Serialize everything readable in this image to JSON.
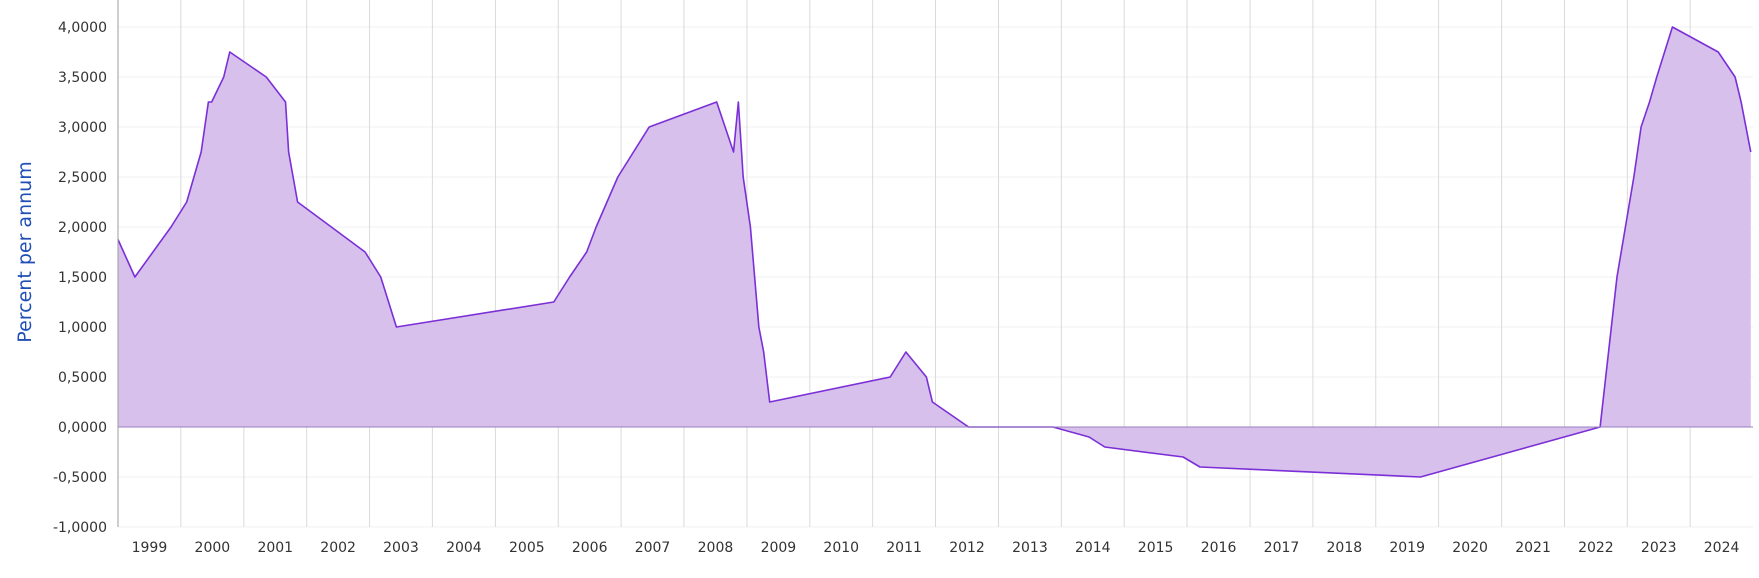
{
  "chart_data": {
    "type": "area",
    "ylabel": "Percent per annum",
    "xlabel": "",
    "title": "",
    "ylim": [
      -1.0,
      4.0
    ],
    "xlim": [
      "1999-01-01",
      "2024-12-31"
    ],
    "grid": {
      "vertical": true,
      "horizontal": true
    },
    "y_ticks": [
      "4,0000",
      "3,5000",
      "3,0000",
      "2,5000",
      "2,0000",
      "1,5000",
      "1,0000",
      "0,5000",
      "0,0000",
      "-0,5000",
      "-1,0000"
    ],
    "y_tick_values": [
      4.0,
      3.5,
      3.0,
      2.5,
      2.0,
      1.5,
      1.0,
      0.5,
      0.0,
      -0.5,
      -1.0
    ],
    "x_ticks": [
      "1999",
      "2000",
      "2001",
      "2002",
      "2003",
      "2004",
      "2005",
      "2006",
      "2007",
      "2008",
      "2009",
      "2010",
      "2011",
      "2012",
      "2013",
      "2014",
      "2015",
      "2016",
      "2017",
      "2018",
      "2019",
      "2020",
      "2021",
      "2022",
      "2023",
      "2024"
    ],
    "colors": {
      "line": "#7b2fd6",
      "fill": "#d7c1ec",
      "ylabel": "#1f4fb5"
    },
    "series": [
      {
        "x": [
          "1999-01-01",
          "1999-04-09",
          "1999-11-05",
          "2000-02-04",
          "2000-03-17",
          "2000-04-28",
          "2000-06-09",
          "2000-06-28",
          "2000-09-06",
          "2000-10-11",
          "2001-05-11",
          "2001-08-31",
          "2001-09-18",
          "2001-11-09",
          "2002-12-06",
          "2003-03-07",
          "2003-06-06",
          "2005-12-06",
          "2006-03-08",
          "2006-06-15",
          "2006-08-09",
          "2006-10-11",
          "2006-12-13",
          "2007-03-14",
          "2007-06-13",
          "2008-07-09",
          "2008-10-15",
          "2008-11-12",
          "2008-12-10",
          "2009-01-21",
          "2009-03-11",
          "2009-04-08",
          "2009-05-13",
          "2011-04-13",
          "2011-07-13",
          "2011-11-09",
          "2011-12-14",
          "2012-07-11",
          "2013-05-08",
          "2013-11-13",
          "2014-06-11",
          "2014-09-10",
          "2015-12-09",
          "2016-03-16",
          "2019-09-18",
          "2022-07-27",
          "2022-09-14",
          "2022-11-02",
          "2022-12-21",
          "2023-02-08",
          "2023-03-22",
          "2023-05-10",
          "2023-06-21",
          "2023-09-20",
          "2024-06-12",
          "2024-09-18",
          "2024-10-23",
          "2024-12-18"
        ],
        "y": [
          1.875,
          1.5,
          2.0,
          2.25,
          2.5,
          2.75,
          3.25,
          3.25,
          3.5,
          3.75,
          3.5,
          3.25,
          2.75,
          2.25,
          1.75,
          1.5,
          1.0,
          1.25,
          1.5,
          1.75,
          2.0,
          2.25,
          2.5,
          2.75,
          3.0,
          3.25,
          2.75,
          3.25,
          2.5,
          2.0,
          1.0,
          0.75,
          0.25,
          0.5,
          0.75,
          0.5,
          0.25,
          0.0,
          0.0,
          0.0,
          -0.1,
          -0.2,
          -0.3,
          -0.4,
          -0.5,
          0.0,
          0.75,
          1.5,
          2.0,
          2.5,
          3.0,
          3.25,
          3.5,
          4.0,
          3.75,
          3.5,
          3.25,
          2.75
        ]
      }
    ]
  }
}
